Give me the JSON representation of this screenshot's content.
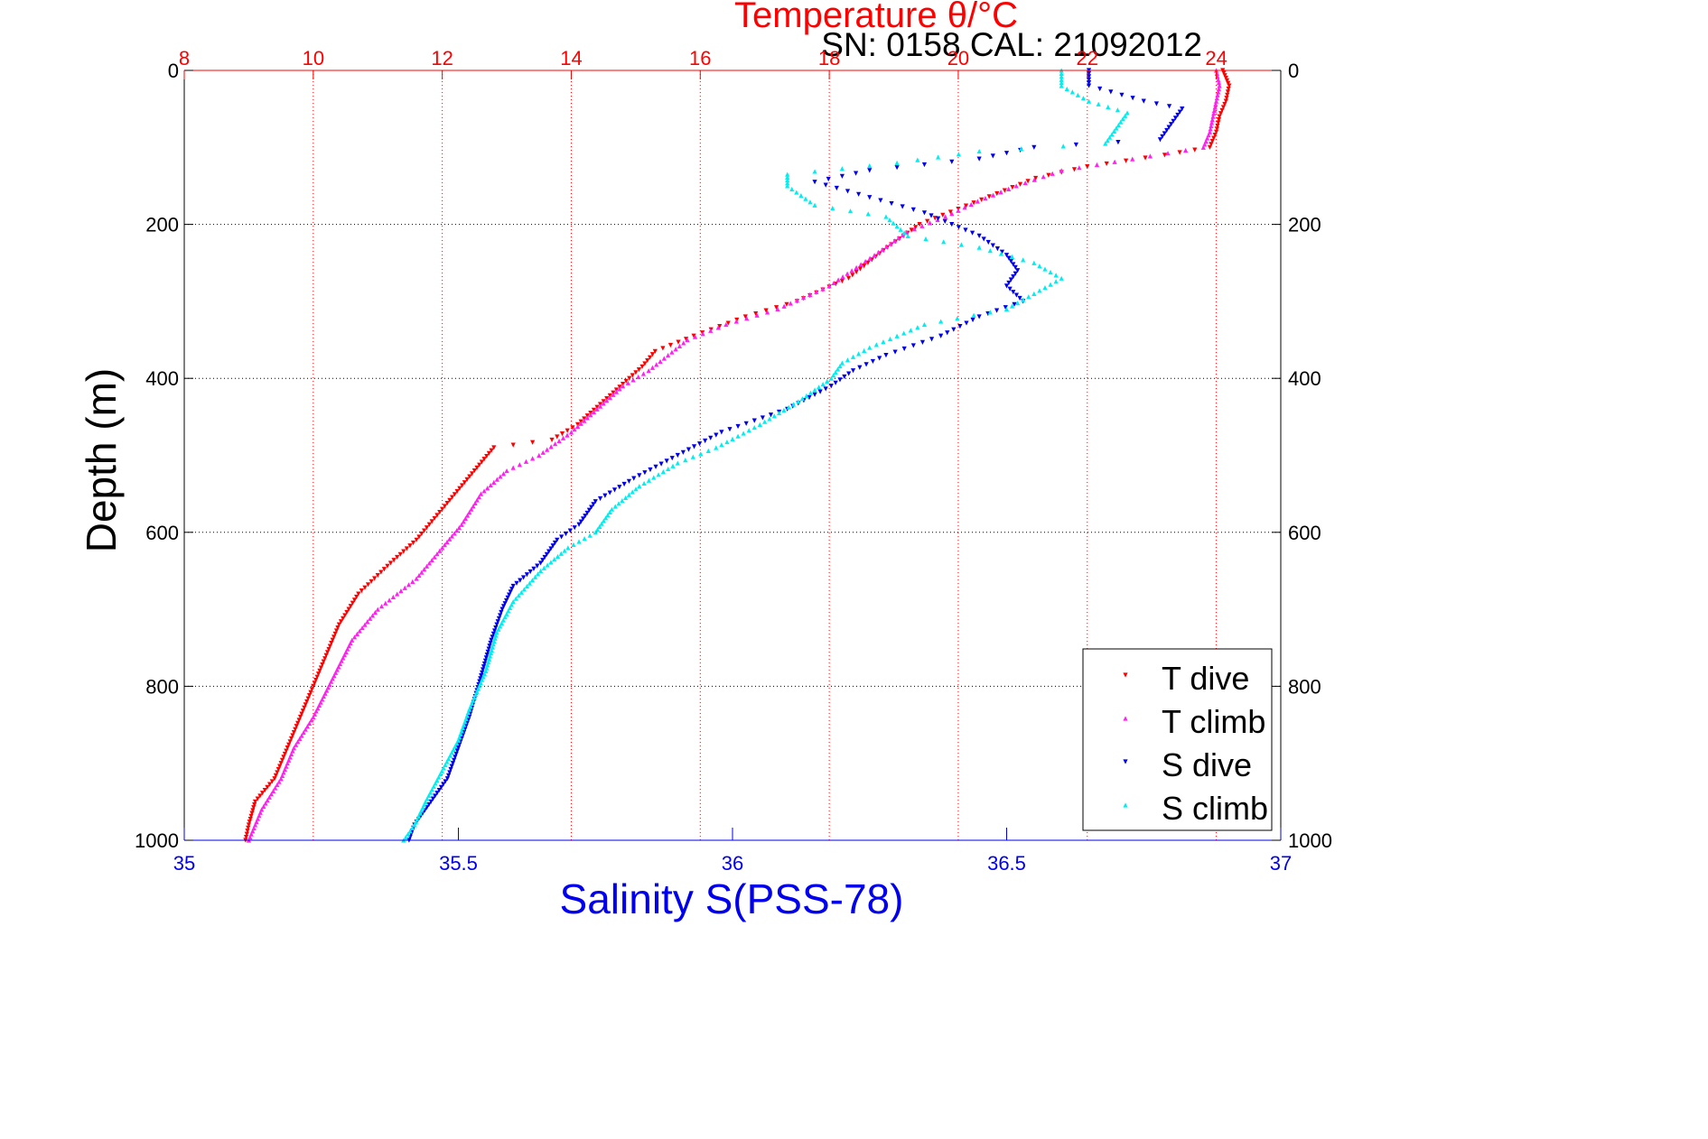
{
  "chart_data": {
    "type": "scatter",
    "title": "Temperature θ/°C",
    "subtitle": "SN: 0158  CAL: 21092012",
    "ylabel": "Depth (m)",
    "xlabel_bottom": "Salinity S(PSS-78)",
    "xlabel_top": "Temperature θ/°C",
    "ylim": [
      0,
      1000
    ],
    "y_reversed": true,
    "x_top_range": [
      8,
      25
    ],
    "x_bottom_range": [
      35,
      37
    ],
    "y_ticks": [
      0,
      200,
      400,
      600,
      800,
      1000
    ],
    "top_ticks": [
      8,
      10,
      12,
      14,
      16,
      18,
      20,
      22,
      24
    ],
    "bottom_ticks": [
      35,
      35.5,
      36,
      36.5,
      37
    ],
    "bottom_tick_labels": [
      "35",
      "35.5",
      "36",
      "36.5",
      "37"
    ],
    "grid": true,
    "legend_position": "bottom-right",
    "colors": {
      "t_dive": "#ff0000",
      "t_climb": "#ff22ee",
      "s_dive": "#0000ee",
      "s_climb": "#00eeee",
      "temperature_axis": "#ff0000",
      "salinity_axis": "#0000ee",
      "grid_temperature": "#ff0000",
      "grid_depth": "#000000"
    },
    "series": [
      {
        "name": "T dive",
        "axis": "temperature",
        "marker": "triangle-down",
        "color": "#ff0000",
        "points": [
          [
            24.1,
            0
          ],
          [
            24.15,
            10
          ],
          [
            24.2,
            20
          ],
          [
            24.15,
            40
          ],
          [
            24.05,
            60
          ],
          [
            24.0,
            80
          ],
          [
            23.9,
            100
          ],
          [
            23.2,
            110
          ],
          [
            22.0,
            125
          ],
          [
            21.2,
            140
          ],
          [
            20.6,
            160
          ],
          [
            20.0,
            180
          ],
          [
            19.4,
            200
          ],
          [
            18.9,
            230
          ],
          [
            18.3,
            270
          ],
          [
            17.5,
            300
          ],
          [
            16.7,
            320
          ],
          [
            15.9,
            345
          ],
          [
            15.3,
            365
          ],
          [
            15.1,
            385
          ],
          [
            14.9,
            400
          ],
          [
            14.5,
            430
          ],
          [
            14.1,
            460
          ],
          [
            13.7,
            480
          ],
          [
            12.8,
            490
          ],
          [
            12.5,
            520
          ],
          [
            12.0,
            570
          ],
          [
            11.6,
            610
          ],
          [
            11.2,
            640
          ],
          [
            10.7,
            680
          ],
          [
            10.4,
            720
          ],
          [
            10.1,
            780
          ],
          [
            9.8,
            840
          ],
          [
            9.6,
            880
          ],
          [
            9.4,
            920
          ],
          [
            9.1,
            950
          ],
          [
            9.0,
            980
          ],
          [
            8.95,
            1000
          ]
        ]
      },
      {
        "name": "T climb",
        "axis": "temperature",
        "marker": "triangle-up",
        "color": "#ff22ee",
        "points": [
          [
            24.0,
            0
          ],
          [
            24.05,
            20
          ],
          [
            24.0,
            40
          ],
          [
            23.95,
            60
          ],
          [
            23.9,
            80
          ],
          [
            23.8,
            100
          ],
          [
            22.7,
            115
          ],
          [
            21.6,
            130
          ],
          [
            20.9,
            150
          ],
          [
            20.3,
            170
          ],
          [
            19.8,
            190
          ],
          [
            19.2,
            210
          ],
          [
            18.7,
            240
          ],
          [
            18.0,
            280
          ],
          [
            17.2,
            310
          ],
          [
            16.4,
            330
          ],
          [
            15.8,
            350
          ],
          [
            15.5,
            370
          ],
          [
            15.2,
            390
          ],
          [
            14.8,
            410
          ],
          [
            14.4,
            440
          ],
          [
            14.0,
            470
          ],
          [
            13.5,
            500
          ],
          [
            13.0,
            520
          ],
          [
            12.6,
            550
          ],
          [
            12.3,
            590
          ],
          [
            12.0,
            620
          ],
          [
            11.6,
            660
          ],
          [
            11.0,
            700
          ],
          [
            10.6,
            740
          ],
          [
            10.3,
            790
          ],
          [
            10.0,
            840
          ],
          [
            9.7,
            880
          ],
          [
            9.5,
            920
          ],
          [
            9.2,
            960
          ],
          [
            9.0,
            1000
          ]
        ]
      },
      {
        "name": "S dive",
        "axis": "salinity",
        "marker": "triangle-down",
        "color": "#0000ee",
        "points": [
          [
            36.65,
            0
          ],
          [
            36.65,
            20
          ],
          [
            36.75,
            40
          ],
          [
            36.82,
            50
          ],
          [
            36.8,
            70
          ],
          [
            36.78,
            90
          ],
          [
            36.55,
            100
          ],
          [
            36.45,
            115
          ],
          [
            36.25,
            130
          ],
          [
            36.15,
            145
          ],
          [
            36.25,
            165
          ],
          [
            36.35,
            185
          ],
          [
            36.4,
            200
          ],
          [
            36.45,
            215
          ],
          [
            36.5,
            240
          ],
          [
            36.52,
            260
          ],
          [
            36.5,
            280
          ],
          [
            36.53,
            300
          ],
          [
            36.45,
            320
          ],
          [
            36.38,
            345
          ],
          [
            36.28,
            370
          ],
          [
            36.22,
            390
          ],
          [
            36.18,
            410
          ],
          [
            36.1,
            440
          ],
          [
            35.98,
            470
          ],
          [
            35.9,
            500
          ],
          [
            35.82,
            530
          ],
          [
            35.75,
            560
          ],
          [
            35.72,
            590
          ],
          [
            35.68,
            610
          ],
          [
            35.65,
            640
          ],
          [
            35.6,
            670
          ],
          [
            35.58,
            700
          ],
          [
            35.56,
            740
          ],
          [
            35.54,
            790
          ],
          [
            35.52,
            840
          ],
          [
            35.5,
            880
          ],
          [
            35.48,
            920
          ],
          [
            35.45,
            950
          ],
          [
            35.42,
            980
          ],
          [
            35.41,
            1000
          ]
        ]
      },
      {
        "name": "S climb",
        "axis": "salinity",
        "marker": "triangle-up",
        "color": "#00eeee",
        "points": [
          [
            36.6,
            0
          ],
          [
            36.6,
            20
          ],
          [
            36.65,
            40
          ],
          [
            36.72,
            55
          ],
          [
            36.7,
            75
          ],
          [
            36.68,
            95
          ],
          [
            36.45,
            105
          ],
          [
            36.3,
            120
          ],
          [
            36.1,
            135
          ],
          [
            36.1,
            150
          ],
          [
            36.15,
            175
          ],
          [
            36.28,
            190
          ],
          [
            36.32,
            215
          ],
          [
            36.45,
            230
          ],
          [
            36.55,
            250
          ],
          [
            36.6,
            270
          ],
          [
            36.55,
            290
          ],
          [
            36.5,
            310
          ],
          [
            36.35,
            330
          ],
          [
            36.25,
            360
          ],
          [
            36.2,
            380
          ],
          [
            36.18,
            400
          ],
          [
            36.12,
            430
          ],
          [
            36.05,
            460
          ],
          [
            35.97,
            490
          ],
          [
            35.9,
            510
          ],
          [
            35.83,
            540
          ],
          [
            35.78,
            570
          ],
          [
            35.75,
            600
          ],
          [
            35.7,
            620
          ],
          [
            35.65,
            650
          ],
          [
            35.6,
            690
          ],
          [
            35.57,
            730
          ],
          [
            35.55,
            780
          ],
          [
            35.52,
            830
          ],
          [
            35.5,
            870
          ],
          [
            35.47,
            910
          ],
          [
            35.44,
            950
          ],
          [
            35.42,
            980
          ],
          [
            35.4,
            1000
          ]
        ]
      }
    ]
  }
}
